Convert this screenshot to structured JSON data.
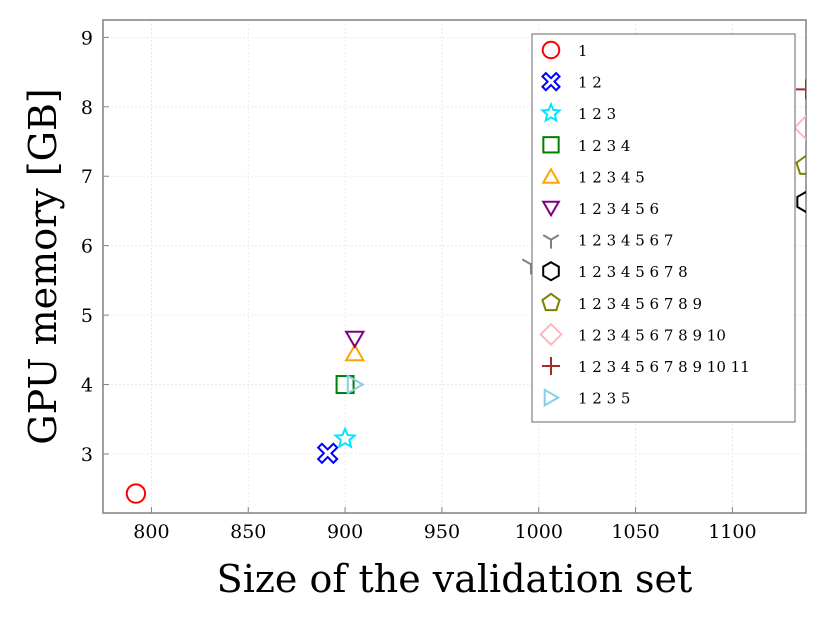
{
  "chart_data": {
    "type": "scatter",
    "title": "",
    "xlabel": "Size of the validation set",
    "ylabel": "GPU memory [GB]",
    "xlim": [
      775,
      1138
    ],
    "ylim": [
      2.15,
      9.25
    ],
    "xticks": [
      800,
      850,
      900,
      950,
      1000,
      1050,
      1100
    ],
    "yticks": [
      3,
      4,
      5,
      6,
      7,
      8,
      9
    ],
    "grid": true,
    "legend_position": "top-right",
    "series": [
      {
        "name": "1",
        "marker": "circle",
        "color": "#ff0000",
        "x": 792,
        "y": 2.43
      },
      {
        "name": "1 2",
        "marker": "x-cross",
        "color": "#0000ff",
        "x": 891,
        "y": 3.01
      },
      {
        "name": "1 2 3",
        "marker": "star",
        "color": "#00e5ff",
        "x": 900,
        "y": 3.22
      },
      {
        "name": "1 2 3 4",
        "marker": "square",
        "color": "#008000",
        "x": 900,
        "y": 4.0
      },
      {
        "name": "1 2 3 4 5",
        "marker": "triangle-up",
        "color": "#ffa500",
        "x": 905,
        "y": 4.45
      },
      {
        "name": "1 2 3 4 5 6",
        "marker": "triangle-down",
        "color": "#800080",
        "x": 905,
        "y": 4.66
      },
      {
        "name": "1 2 3 4 5 6 7",
        "marker": "tri-down",
        "color": "#808080",
        "x": 996,
        "y": 5.73
      },
      {
        "name": "1 2 3 4 5 6 7 8",
        "marker": "hexagon",
        "color": "#000000",
        "x": 1138,
        "y": 6.63
      },
      {
        "name": "1 2 3 4 5 6 7 8 9",
        "marker": "pentagon",
        "color": "#808000",
        "x": 1138,
        "y": 7.15
      },
      {
        "name": "1 2 3 4 5 6 7 8 9 10",
        "marker": "diamond",
        "color": "#ffb6c1",
        "x": 1138,
        "y": 7.7
      },
      {
        "name": "1 2 3 4 5 6 7 8 9 10 11",
        "marker": "plus",
        "color": "#a52a2a",
        "x": 1138,
        "y": 8.25
      },
      {
        "name": "1 2 3 5",
        "marker": "triangle-right",
        "color": "#87ceeb",
        "x": 905,
        "y": 4.0
      }
    ]
  }
}
